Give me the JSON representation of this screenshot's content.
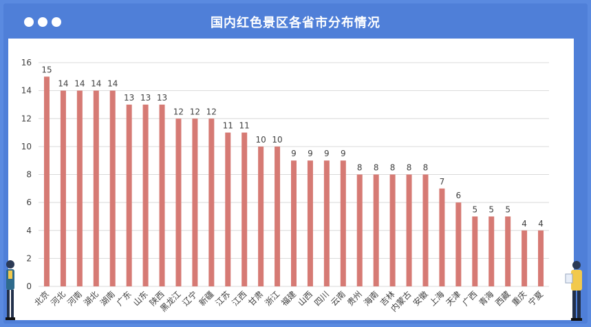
{
  "window": {
    "title": "国内红色景区各省市分布情况"
  },
  "colors": {
    "frame": "#4f7fd8",
    "bar": "#d67a74",
    "grid": "#d9d9d9",
    "text": "#404040"
  },
  "chart_data": {
    "type": "bar",
    "title": "国内红色景区各省市分布情况",
    "xlabel": "",
    "ylabel": "",
    "ylim": [
      0,
      16
    ],
    "yticks": [
      0,
      2,
      4,
      6,
      8,
      10,
      12,
      14,
      16
    ],
    "grid": true,
    "categories": [
      "北京",
      "河北",
      "河南",
      "湖北",
      "湖南",
      "广东",
      "山东",
      "陕西",
      "黑龙江",
      "辽宁",
      "新疆",
      "江苏",
      "江西",
      "甘肃",
      "浙江",
      "福建",
      "山西",
      "四川",
      "云南",
      "贵州",
      "海南",
      "吉林",
      "内蒙古",
      "安徽",
      "上海",
      "天津",
      "广西",
      "青海",
      "西藏",
      "重庆",
      "宁夏"
    ],
    "values": [
      15,
      14,
      14,
      14,
      14,
      13,
      13,
      13,
      12,
      12,
      12,
      11,
      11,
      10,
      10,
      9,
      9,
      9,
      9,
      8,
      8,
      8,
      8,
      8,
      7,
      6,
      5,
      5,
      5,
      4,
      4
    ]
  }
}
